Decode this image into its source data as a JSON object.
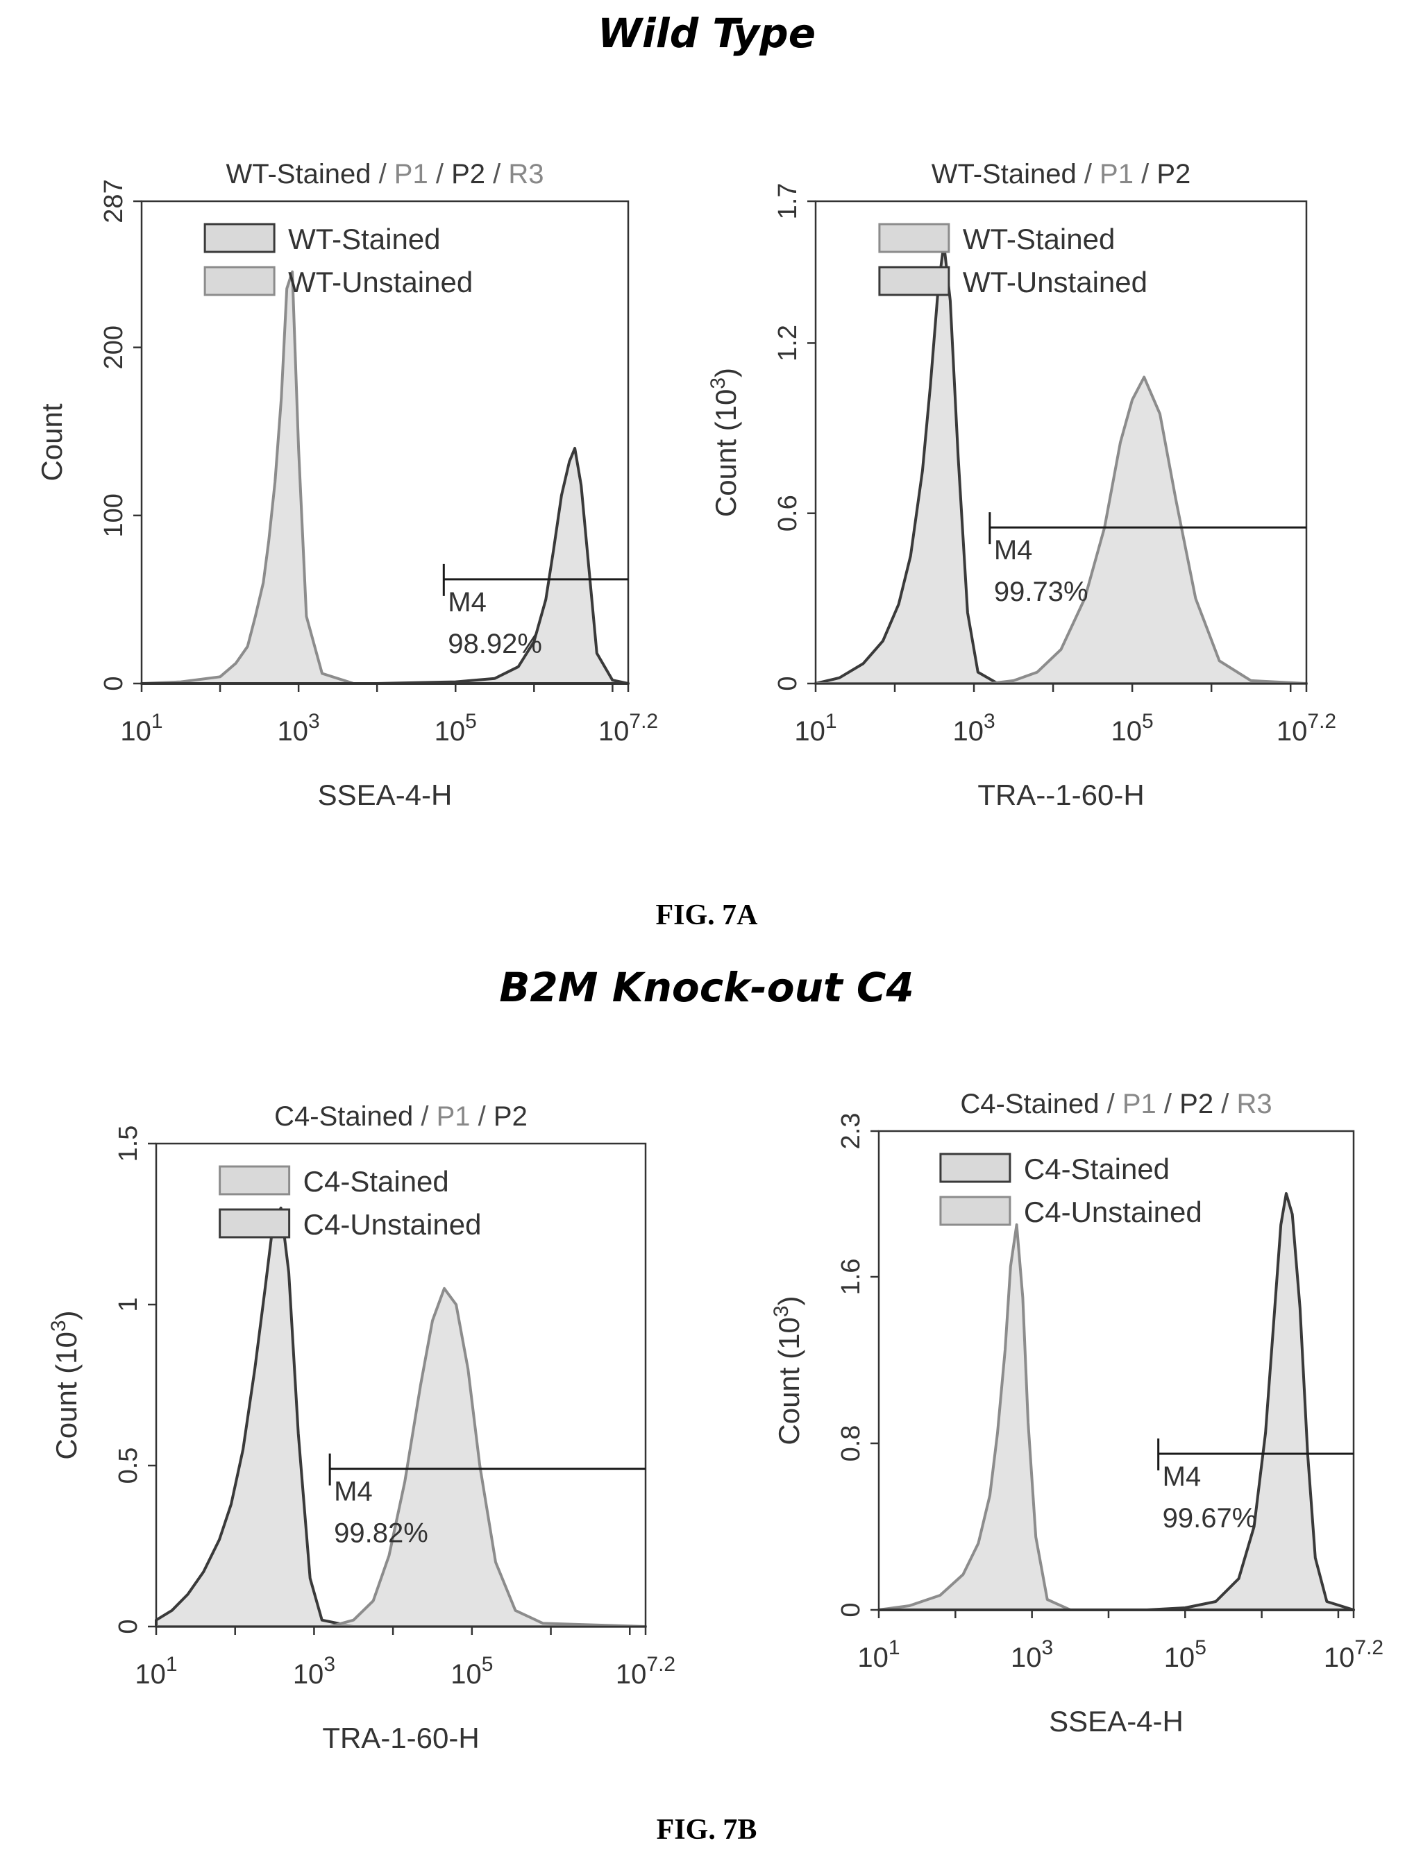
{
  "figure": {
    "section_a_title": "Wild Type",
    "section_a_label": "FIG. 7A",
    "section_b_title": "B2M Knock-out C4",
    "section_b_label": "FIG. 7B"
  },
  "colors": {
    "primary": "#3a3a3a",
    "secondary": "#8c8c8c",
    "fill": "#d9d9d9",
    "marker": "#1a1a1a"
  },
  "chart_data": [
    {
      "type": "area",
      "title_parts": [
        "WT-Stained",
        "P1",
        "P2",
        "R3"
      ],
      "xlabel": "SSEA-4-H",
      "ylabel": "Count",
      "xscale": "log",
      "xlim": [
        1,
        7.2
      ],
      "x_tick_labels": [
        {
          "base": "10",
          "exp": "1",
          "at": 1
        },
        {
          "base": "10",
          "exp": "3",
          "at": 3
        },
        {
          "base": "10",
          "exp": "5",
          "at": 5
        },
        {
          "base": "10",
          "exp": "7.2",
          "at": 7.2
        }
      ],
      "ylim": [
        0,
        287
      ],
      "y_ticks": [
        0,
        100,
        200,
        287
      ],
      "y_tick_labels": [
        "0",
        "100",
        "200",
        "287"
      ],
      "legend": [
        "WT-Stained",
        "WT-Unstained"
      ],
      "legend_placement": "top-center",
      "series": [
        {
          "name": "WT-Unstained",
          "color": "#8c8c8c",
          "x": [
            1.0,
            1.5,
            2.0,
            2.2,
            2.35,
            2.45,
            2.55,
            2.62,
            2.7,
            2.78,
            2.85,
            2.92,
            3.0,
            3.1,
            3.3,
            3.7,
            4.5,
            5.5,
            6.5,
            7.2
          ],
          "values": [
            0,
            1,
            4,
            12,
            22,
            40,
            60,
            85,
            120,
            170,
            235,
            245,
            140,
            40,
            6,
            0,
            0,
            0,
            0,
            0
          ]
        },
        {
          "name": "WT-Stained",
          "color": "#3a3a3a",
          "x": [
            1.0,
            2.0,
            3.0,
            4.0,
            5.0,
            5.5,
            5.8,
            6.0,
            6.15,
            6.25,
            6.35,
            6.45,
            6.52,
            6.6,
            6.7,
            6.8,
            7.0,
            7.2
          ],
          "values": [
            0,
            0,
            0,
            0,
            1,
            3,
            10,
            25,
            50,
            80,
            112,
            132,
            140,
            118,
            68,
            18,
            2,
            0
          ]
        }
      ],
      "marker": {
        "label": "M4",
        "percent": "98.92%",
        "x_start": 4.85,
        "x_end": 7.2,
        "y": 62
      }
    },
    {
      "type": "area",
      "title_parts": [
        "WT-Stained",
        "P1",
        "P2"
      ],
      "xlabel": "TRA--1-60-H",
      "ylabel": "Count  (10",
      "ylabel_exp": "3",
      "ylabel_suffix": ")",
      "xscale": "log",
      "xlim": [
        1,
        7.2
      ],
      "x_tick_labels": [
        {
          "base": "10",
          "exp": "1",
          "at": 1
        },
        {
          "base": "10",
          "exp": "3",
          "at": 3
        },
        {
          "base": "10",
          "exp": "5",
          "at": 5
        },
        {
          "base": "10",
          "exp": "7.2",
          "at": 7.2
        }
      ],
      "ylim": [
        0,
        1.7
      ],
      "y_ticks": [
        0,
        0.6,
        1.2,
        1.7
      ],
      "y_tick_labels": [
        "0",
        "0.6",
        "1.2",
        "1.7"
      ],
      "legend": [
        "WT-Stained",
        "WT-Unstained"
      ],
      "legend_placement": "top-center",
      "series": [
        {
          "name": "WT-Unstained",
          "color": "#3a3a3a",
          "x": [
            1.0,
            1.3,
            1.6,
            1.85,
            2.05,
            2.2,
            2.35,
            2.45,
            2.55,
            2.62,
            2.7,
            2.8,
            2.92,
            3.05,
            3.3,
            4.0,
            5.0,
            6.0,
            7.2
          ],
          "values": [
            0,
            0.02,
            0.07,
            0.15,
            0.28,
            0.45,
            0.75,
            1.05,
            1.4,
            1.55,
            1.35,
            0.8,
            0.25,
            0.04,
            0,
            0,
            0,
            0,
            0
          ]
        },
        {
          "name": "WT-Stained",
          "color": "#8c8c8c",
          "x": [
            1.0,
            2.5,
            3.2,
            3.5,
            3.8,
            4.1,
            4.4,
            4.65,
            4.85,
            5.0,
            5.15,
            5.35,
            5.55,
            5.8,
            6.1,
            6.5,
            7.2
          ],
          "values": [
            0,
            0,
            0,
            0.01,
            0.04,
            0.12,
            0.3,
            0.55,
            0.85,
            1.0,
            1.08,
            0.95,
            0.65,
            0.3,
            0.08,
            0.01,
            0
          ]
        }
      ],
      "marker": {
        "label": "M4",
        "percent": "99.73%",
        "x_start": 3.2,
        "x_end": 7.2,
        "y": 0.55
      }
    },
    {
      "type": "area",
      "title_parts": [
        "C4-Stained",
        "P1",
        "P2"
      ],
      "xlabel": "TRA-1-60-H",
      "ylabel": "Count  (10",
      "ylabel_exp": "3",
      "ylabel_suffix": ")",
      "xscale": "log",
      "xlim": [
        1,
        7.2
      ],
      "x_tick_labels": [
        {
          "base": "10",
          "exp": "1",
          "at": 1
        },
        {
          "base": "10",
          "exp": "3",
          "at": 3
        },
        {
          "base": "10",
          "exp": "5",
          "at": 5
        },
        {
          "base": "10",
          "exp": "7.2",
          "at": 7.2
        }
      ],
      "ylim": [
        0,
        1.5
      ],
      "y_ticks": [
        0,
        0.5,
        1,
        1.5
      ],
      "y_tick_labels": [
        "0",
        "0.5",
        "1",
        "1.5"
      ],
      "legend": [
        "C4-Stained",
        "C4-Unstained"
      ],
      "legend_placement": "top-center",
      "series": [
        {
          "name": "C4-Unstained",
          "color": "#3a3a3a",
          "x": [
            1.0,
            1.2,
            1.4,
            1.6,
            1.8,
            1.95,
            2.1,
            2.25,
            2.38,
            2.48,
            2.58,
            2.68,
            2.8,
            2.95,
            3.1,
            3.5,
            4.5,
            5.5,
            7.2
          ],
          "values": [
            0.02,
            0.05,
            0.1,
            0.17,
            0.27,
            0.38,
            0.55,
            0.8,
            1.05,
            1.25,
            1.3,
            1.1,
            0.6,
            0.15,
            0.02,
            0,
            0,
            0,
            0
          ]
        },
        {
          "name": "C4-Stained",
          "color": "#8c8c8c",
          "x": [
            1.0,
            2.5,
            3.2,
            3.5,
            3.75,
            3.95,
            4.15,
            4.35,
            4.5,
            4.65,
            4.8,
            4.95,
            5.1,
            5.3,
            5.55,
            5.9,
            7.2
          ],
          "values": [
            0,
            0,
            0,
            0.02,
            0.08,
            0.22,
            0.45,
            0.75,
            0.95,
            1.05,
            1.0,
            0.8,
            0.5,
            0.2,
            0.05,
            0.01,
            0
          ]
        }
      ],
      "marker": {
        "label": "M4",
        "percent": "99.82%",
        "x_start": 3.2,
        "x_end": 7.2,
        "y": 0.49
      }
    },
    {
      "type": "area",
      "title_parts": [
        "C4-Stained",
        "P1",
        "P2",
        "R3"
      ],
      "xlabel": "SSEA-4-H",
      "ylabel": "Count  (10",
      "ylabel_exp": "3",
      "ylabel_suffix": ")",
      "xscale": "log",
      "xlim": [
        1,
        7.2
      ],
      "x_tick_labels": [
        {
          "base": "10",
          "exp": "1",
          "at": 1
        },
        {
          "base": "10",
          "exp": "3",
          "at": 3
        },
        {
          "base": "10",
          "exp": "5",
          "at": 5
        },
        {
          "base": "10",
          "exp": "7.2",
          "at": 7.2
        }
      ],
      "ylim": [
        0,
        2.3
      ],
      "y_ticks": [
        0,
        0.8,
        1.6,
        2.3
      ],
      "y_tick_labels": [
        "0",
        "0.8",
        "1.6",
        "2.3"
      ],
      "legend": [
        "C4-Stained",
        "C4-Unstained"
      ],
      "legend_placement": "top-center",
      "series": [
        {
          "name": "C4-Unstained",
          "color": "#8c8c8c",
          "x": [
            1.0,
            1.4,
            1.8,
            2.1,
            2.3,
            2.45,
            2.55,
            2.65,
            2.72,
            2.8,
            2.88,
            2.95,
            3.05,
            3.2,
            3.5,
            4.5,
            5.5,
            7.2
          ],
          "values": [
            0,
            0.02,
            0.07,
            0.17,
            0.32,
            0.55,
            0.85,
            1.25,
            1.65,
            1.85,
            1.5,
            0.9,
            0.35,
            0.05,
            0,
            0,
            0,
            0
          ]
        },
        {
          "name": "C4-Stained",
          "color": "#3a3a3a",
          "x": [
            1.0,
            3.0,
            4.5,
            5.0,
            5.4,
            5.7,
            5.9,
            6.05,
            6.15,
            6.25,
            6.32,
            6.4,
            6.5,
            6.6,
            6.7,
            6.85,
            7.2
          ],
          "values": [
            0,
            0,
            0,
            0.01,
            0.04,
            0.15,
            0.4,
            0.85,
            1.35,
            1.85,
            2.0,
            1.9,
            1.45,
            0.75,
            0.25,
            0.04,
            0
          ]
        }
      ],
      "marker": {
        "label": "M4",
        "percent": "99.67%",
        "x_start": 4.65,
        "x_end": 7.2,
        "y": 0.75
      }
    }
  ]
}
